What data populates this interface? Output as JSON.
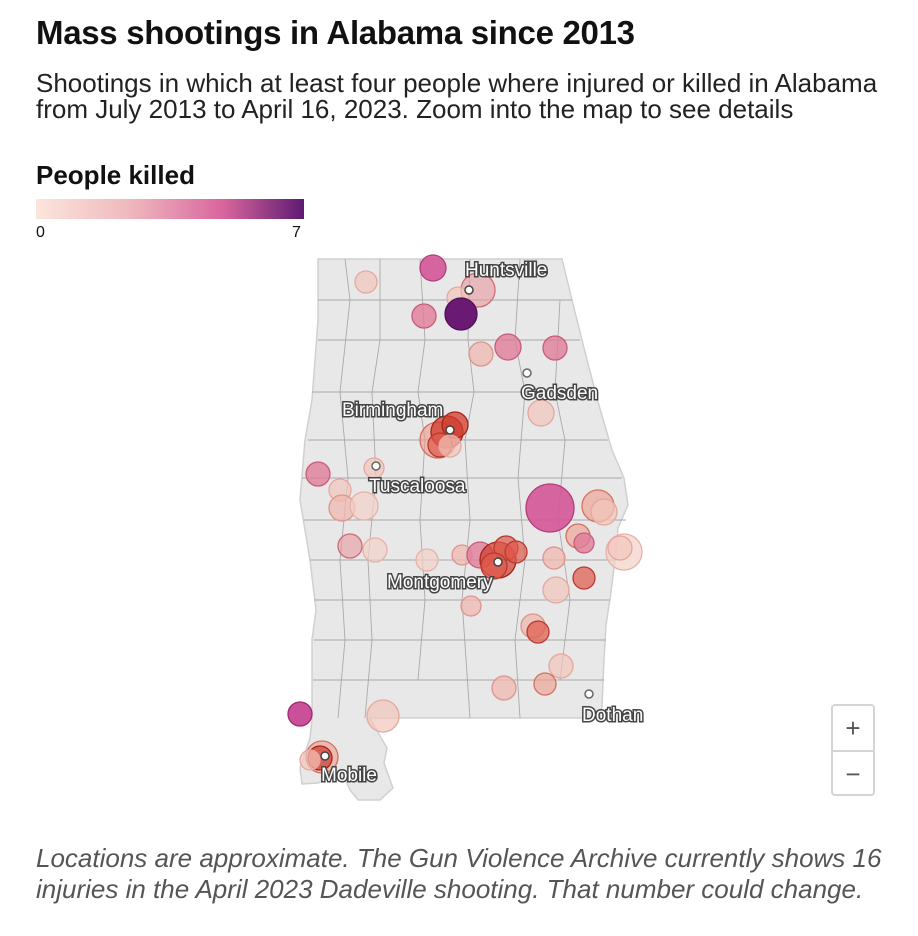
{
  "header": {
    "title": "Mass shootings in Alabama since 2013",
    "subtitle": "Shootings in which at least four people where injured or killed in Alabama from July 2013 to April 16, 2023. Zoom into the map to see details"
  },
  "legend": {
    "title": "People killed",
    "min": "0",
    "max": "7"
  },
  "map": {
    "cities": [
      {
        "name": "Huntsville"
      },
      {
        "name": "Gadsden"
      },
      {
        "name": "Birmingham"
      },
      {
        "name": "Tuscaloosa"
      },
      {
        "name": "Montgomery"
      },
      {
        "name": "Dothan"
      },
      {
        "name": "Mobile"
      }
    ]
  },
  "zoom": {
    "in_label": "+",
    "out_label": "−"
  },
  "footnote": "Locations are approximate. The Gun Violence Archive currently shows 16 injuries in the April 2023 Dadeville shooting. That number could change."
}
